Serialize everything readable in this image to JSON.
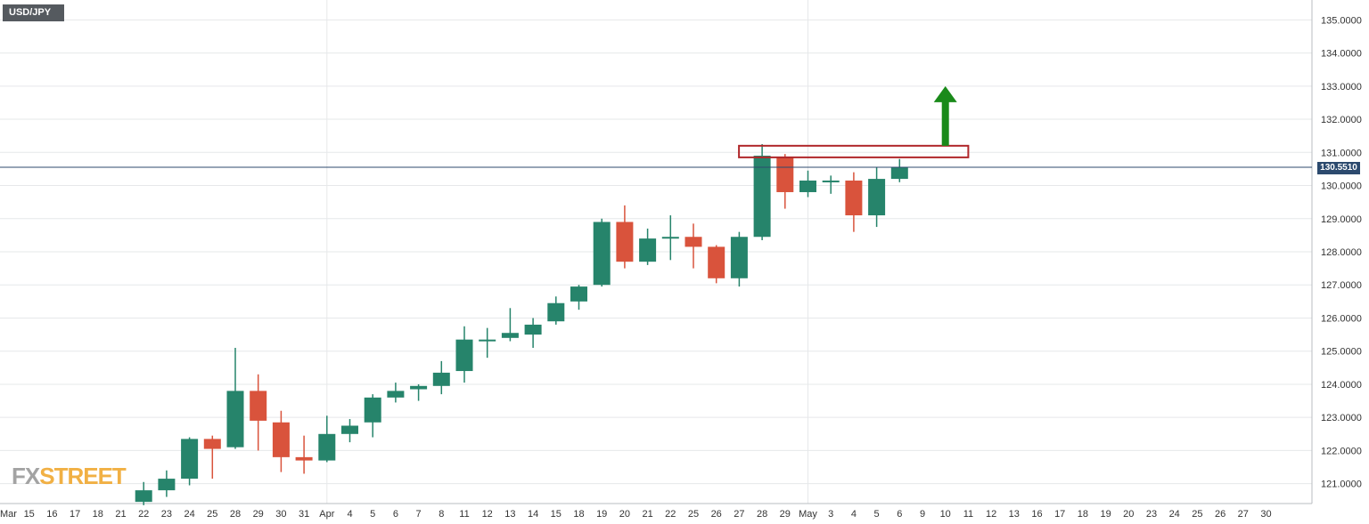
{
  "symbol": "USD/JPY",
  "current_price_label": "130.5510",
  "logo": {
    "fx": "FX",
    "street": "STREET"
  },
  "colors": {
    "bull": "#26846b",
    "bear": "#d9533c",
    "grid": "#e6e8ea",
    "current_line": "#2c4a6e",
    "resistance_box": "#b0272a",
    "arrow": "#1a8a1a"
  },
  "chart_data": {
    "type": "candlestick",
    "title": "USD/JPY",
    "timeframe": "daily",
    "y_axis": {
      "side": "right",
      "range": [
        120.4,
        135.6
      ],
      "ticks": [
        "121.0000",
        "122.0000",
        "123.0000",
        "124.0000",
        "125.0000",
        "126.0000",
        "127.0000",
        "128.0000",
        "129.0000",
        "130.0000",
        "131.0000",
        "132.0000",
        "133.0000",
        "134.0000",
        "135.0000"
      ],
      "tick_values": [
        121,
        122,
        123,
        124,
        125,
        126,
        127,
        128,
        129,
        130,
        131,
        132,
        133,
        134,
        135
      ]
    },
    "x_axis": {
      "labels": [
        "Mar",
        "15",
        "16",
        "17",
        "18",
        "21",
        "22",
        "23",
        "24",
        "25",
        "28",
        "29",
        "30",
        "31",
        "Apr",
        "4",
        "5",
        "6",
        "7",
        "8",
        "11",
        "12",
        "13",
        "14",
        "15",
        "18",
        "19",
        "20",
        "21",
        "22",
        "25",
        "26",
        "27",
        "28",
        "29",
        "May",
        "3",
        "4",
        "5",
        "6",
        "9",
        "10",
        "11",
        "12",
        "13",
        "16",
        "17",
        "18",
        "19",
        "20",
        "23",
        "24",
        "25",
        "26",
        "27",
        "30"
      ]
    },
    "grid": true,
    "current_price": 130.551,
    "candles": [
      {
        "date": "22",
        "open": 120.45,
        "high": 121.05,
        "low": 120.35,
        "close": 120.8
      },
      {
        "date": "23",
        "open": 120.8,
        "high": 121.4,
        "low": 120.6,
        "close": 121.15
      },
      {
        "date": "24",
        "open": 121.15,
        "high": 122.4,
        "low": 120.95,
        "close": 122.35
      },
      {
        "date": "25",
        "open": 122.35,
        "high": 122.45,
        "low": 121.15,
        "close": 122.05
      },
      {
        "date": "28",
        "open": 122.1,
        "high": 125.1,
        "low": 122.05,
        "close": 123.8
      },
      {
        "date": "29",
        "open": 123.8,
        "high": 124.3,
        "low": 122.0,
        "close": 122.9
      },
      {
        "date": "30",
        "open": 122.85,
        "high": 123.2,
        "low": 121.35,
        "close": 121.8
      },
      {
        "date": "31",
        "open": 121.8,
        "high": 122.45,
        "low": 121.3,
        "close": 121.7
      },
      {
        "date": "Apr",
        "open": 121.7,
        "high": 123.05,
        "low": 121.65,
        "close": 122.5
      },
      {
        "date": "4",
        "open": 122.5,
        "high": 122.95,
        "low": 122.25,
        "close": 122.75
      },
      {
        "date": "5",
        "open": 122.85,
        "high": 123.7,
        "low": 122.4,
        "close": 123.6
      },
      {
        "date": "6",
        "open": 123.6,
        "high": 124.05,
        "low": 123.45,
        "close": 123.8
      },
      {
        "date": "7",
        "open": 123.85,
        "high": 124.0,
        "low": 123.5,
        "close": 123.95
      },
      {
        "date": "8",
        "open": 123.95,
        "high": 124.7,
        "low": 123.7,
        "close": 124.35
      },
      {
        "date": "11",
        "open": 124.4,
        "high": 125.75,
        "low": 124.05,
        "close": 125.35
      },
      {
        "date": "12",
        "open": 125.35,
        "high": 125.7,
        "low": 124.8,
        "close": 125.35
      },
      {
        "date": "13",
        "open": 125.4,
        "high": 126.3,
        "low": 125.3,
        "close": 125.55
      },
      {
        "date": "14",
        "open": 125.5,
        "high": 126.0,
        "low": 125.1,
        "close": 125.8
      },
      {
        "date": "15",
        "open": 125.9,
        "high": 126.65,
        "low": 125.8,
        "close": 126.45
      },
      {
        "date": "18",
        "open": 126.5,
        "high": 127.0,
        "low": 126.25,
        "close": 126.95
      },
      {
        "date": "19",
        "open": 127.0,
        "high": 129.0,
        "low": 126.95,
        "close": 128.9
      },
      {
        "date": "20",
        "open": 128.9,
        "high": 129.4,
        "low": 127.5,
        "close": 127.7
      },
      {
        "date": "21",
        "open": 127.7,
        "high": 128.7,
        "low": 127.6,
        "close": 128.4
      },
      {
        "date": "22",
        "open": 128.4,
        "high": 129.1,
        "low": 127.75,
        "close": 128.45
      },
      {
        "date": "25",
        "open": 128.45,
        "high": 128.85,
        "low": 127.5,
        "close": 128.15
      },
      {
        "date": "26",
        "open": 128.15,
        "high": 128.2,
        "low": 127.05,
        "close": 127.2
      },
      {
        "date": "27",
        "open": 127.2,
        "high": 128.6,
        "low": 126.95,
        "close": 128.45
      },
      {
        "date": "28",
        "open": 128.45,
        "high": 131.25,
        "low": 128.35,
        "close": 130.9
      },
      {
        "date": "29",
        "open": 130.85,
        "high": 130.95,
        "low": 129.3,
        "close": 129.8
      },
      {
        "date": "May",
        "open": 129.8,
        "high": 130.45,
        "low": 129.65,
        "close": 130.15
      },
      {
        "date": "3",
        "open": 130.15,
        "high": 130.3,
        "low": 129.75,
        "close": 130.15
      },
      {
        "date": "4",
        "open": 130.15,
        "high": 130.4,
        "low": 128.6,
        "close": 129.1
      },
      {
        "date": "5",
        "open": 129.1,
        "high": 130.55,
        "low": 128.75,
        "close": 130.2
      },
      {
        "date": "6",
        "open": 130.2,
        "high": 130.8,
        "low": 130.1,
        "close": 130.55
      }
    ],
    "annotations": [
      {
        "type": "resistance-box",
        "price_low": 130.85,
        "price_high": 131.2,
        "from_date": "28",
        "to_date": "11"
      },
      {
        "type": "arrow-up",
        "from_price": 131.2,
        "to_price": 133.0,
        "date": "10"
      }
    ]
  }
}
